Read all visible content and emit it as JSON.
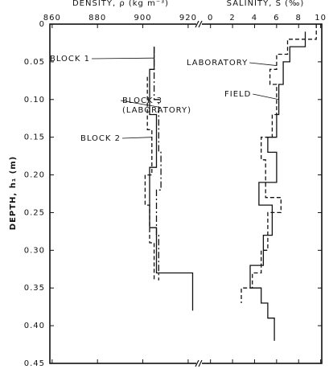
{
  "chart_data": [
    {
      "type": "line",
      "xlabel": "DENSITY, ρ (kg m⁻³)",
      "ylabel": "DEPTH, h₁ (m)",
      "xlim": [
        859,
        925
      ],
      "xticks": [
        860,
        880,
        900,
        920
      ],
      "ylim": [
        0,
        0.45
      ],
      "yticks": [
        0,
        0.05,
        {
          "value": 0.1,
          "label": "0.10"
        },
        0.15,
        {
          "value": 0.2,
          "label": "0.20"
        },
        0.25,
        {
          "value": 0.3,
          "label": "0.30"
        },
        0.35,
        {
          "value": 0.4,
          "label": "0.40"
        },
        0.45
      ],
      "series": [
        {
          "name": "BLOCK 1",
          "color": "#111111",
          "dash": "solid",
          "x": [
            905,
            905,
            903,
            903,
            906,
            906,
            903,
            903,
            906,
            906,
            922,
            922
          ],
          "y": [
            0.03,
            0.06,
            0.06,
            0.12,
            0.12,
            0.19,
            0.19,
            0.27,
            0.27,
            0.33,
            0.33,
            0.38
          ]
        },
        {
          "name": "BLOCK 2",
          "color": "#111111",
          "dash": "dashed",
          "x": [
            902,
            902,
            904,
            904,
            901,
            901,
            903,
            903,
            905,
            905
          ],
          "y": [
            0.07,
            0.14,
            0.14,
            0.2,
            0.2,
            0.24,
            0.24,
            0.29,
            0.29,
            0.34
          ]
        },
        {
          "name": "BLOCK 3 (LABORATORY)",
          "color": "#111111",
          "dash": "dashdot",
          "x": [
            905,
            905,
            907,
            907,
            908,
            908,
            906,
            906,
            907,
            907
          ],
          "y": [
            0.03,
            0.1,
            0.1,
            0.17,
            0.17,
            0.22,
            0.22,
            0.28,
            0.28,
            0.34
          ]
        }
      ]
    },
    {
      "type": "line",
      "xlabel": "SALINITY, S (‰)",
      "xlim": [
        -1,
        10.1
      ],
      "xticks": [
        0,
        2,
        4,
        6,
        8,
        10
      ],
      "ylim": [
        0,
        0.45
      ],
      "series": [
        {
          "name": "LABORATORY",
          "color": "#111111",
          "dash": "dashed",
          "x": [
            9.6,
            9.6,
            7.0,
            7.0,
            6.0,
            6.0,
            5.4,
            5.4,
            6.0,
            6.0,
            5.6,
            5.6,
            4.6,
            4.6,
            5.0,
            5.0,
            6.4,
            6.4,
            5.2,
            5.2,
            4.6,
            4.6,
            3.8,
            3.8,
            2.8,
            2.8
          ],
          "y": [
            0.0,
            0.02,
            0.02,
            0.04,
            0.04,
            0.06,
            0.06,
            0.08,
            0.08,
            0.12,
            0.12,
            0.15,
            0.15,
            0.18,
            0.18,
            0.23,
            0.23,
            0.25,
            0.25,
            0.3,
            0.3,
            0.33,
            0.33,
            0.35,
            0.35,
            0.37
          ]
        },
        {
          "name": "FIELD",
          "color": "#111111",
          "dash": "solid",
          "x": [
            8.6,
            8.6,
            7.2,
            7.2,
            6.6,
            6.6,
            6.2,
            6.2,
            6.0,
            6.0,
            5.2,
            5.2,
            6.0,
            6.0,
            4.4,
            4.4,
            5.6,
            5.6,
            4.8,
            4.8,
            3.6,
            3.6,
            4.6,
            4.6,
            5.2,
            5.2,
            5.8,
            5.8
          ],
          "y": [
            0.01,
            0.03,
            0.03,
            0.05,
            0.05,
            0.08,
            0.08,
            0.12,
            0.12,
            0.15,
            0.15,
            0.17,
            0.17,
            0.21,
            0.21,
            0.24,
            0.24,
            0.28,
            0.28,
            0.32,
            0.32,
            0.35,
            0.35,
            0.37,
            0.37,
            0.39,
            0.39,
            0.42
          ]
        }
      ]
    }
  ]
}
